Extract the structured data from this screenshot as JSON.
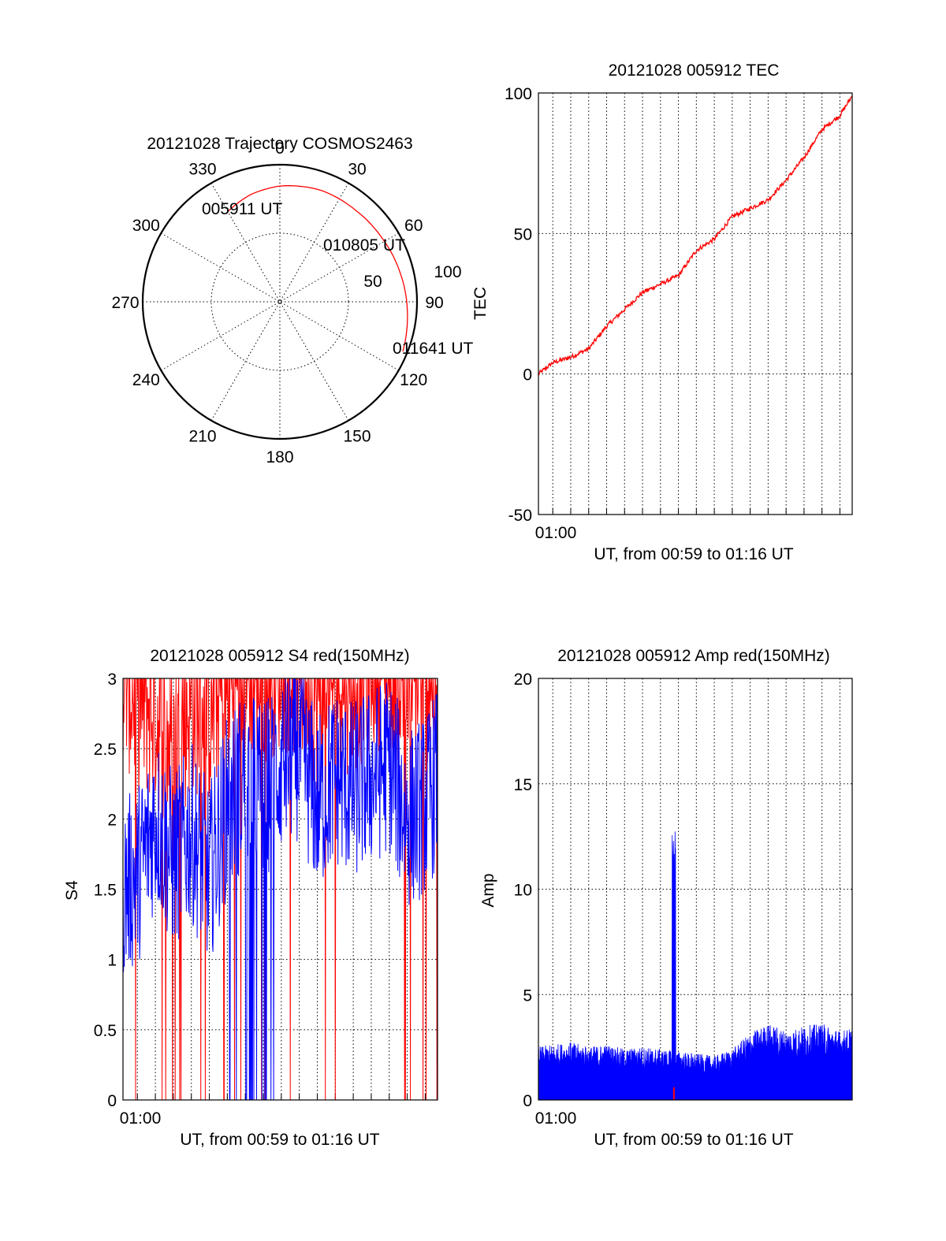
{
  "chart_data": [
    {
      "type": "polar",
      "title": "20121028 Trajectory COSMOS2463",
      "angle_labels": [
        "0",
        "30",
        "60",
        "90",
        "120",
        "150",
        "180",
        "210",
        "240",
        "270",
        "300",
        "330"
      ],
      "radial_labels": [
        "50",
        "100"
      ],
      "grid": true,
      "trajectory_color": "#ff0000",
      "trajectory": [
        {
          "azimuth": 329,
          "elevation": 22
        },
        {
          "azimuth": 345,
          "elevation": 17
        },
        {
          "azimuth": 0,
          "elevation": 14
        },
        {
          "azimuth": 20,
          "elevation": 12
        },
        {
          "azimuth": 40,
          "elevation": 12
        },
        {
          "azimuth": 58,
          "elevation": 11
        },
        {
          "azimuth": 75,
          "elevation": 9
        },
        {
          "azimuth": 95,
          "elevation": 6
        },
        {
          "azimuth": 112,
          "elevation": 3
        }
      ],
      "annotations": [
        {
          "text": "005911 UT",
          "azimuth": 329
        },
        {
          "text": "010805 UT",
          "azimuth": 50
        },
        {
          "text": "011641 UT",
          "azimuth": 112
        }
      ]
    },
    {
      "type": "line",
      "title": "20121028 005912 TEC",
      "xlabel": "UT, from 00:59 to 01:16 UT",
      "ylabel": "TEC",
      "x_ticks": [
        "01:00"
      ],
      "xlim": [
        "00:59:12",
        "01:16:41"
      ],
      "ylim": [
        -50,
        100
      ],
      "y_ticks": [
        "-50",
        "0",
        "50",
        "100"
      ],
      "grid": true,
      "series": [
        {
          "color": "#ff0000",
          "x": [
            "00:59:12",
            "01:00:00",
            "01:01:00",
            "01:02:00",
            "01:03:00",
            "01:04:00",
            "01:05:00",
            "01:06:00",
            "01:07:00",
            "01:08:00",
            "01:09:00",
            "01:10:00",
            "01:11:00",
            "01:12:00",
            "01:13:00",
            "01:14:00",
            "01:15:00",
            "01:16:00",
            "01:16:41"
          ],
          "values": [
            0,
            4,
            6,
            9,
            17,
            23,
            29,
            32,
            35,
            44,
            48,
            56,
            59,
            62,
            69,
            77,
            87,
            92,
            99
          ]
        }
      ]
    },
    {
      "type": "line",
      "title": "20121028 005912 S4 red(150MHz)",
      "xlabel": "UT, from 00:59 to 01:16 UT",
      "ylabel": "S4",
      "x_ticks": [
        "01:00"
      ],
      "xlim": [
        "00:59:12",
        "01:16:41"
      ],
      "ylim": [
        0,
        3
      ],
      "y_ticks": [
        "0",
        "0.5",
        "1",
        "1.5",
        "2",
        "2.5",
        "3"
      ],
      "grid": true,
      "series": [
        {
          "color": "#0000ff",
          "x": [
            "00:59:12",
            "01:00:00",
            "01:01:00",
            "01:02:00",
            "01:03:00",
            "01:04:00",
            "01:05:00",
            "01:06:00",
            "01:07:00",
            "01:08:00",
            "01:09:00",
            "01:10:00",
            "01:11:00",
            "01:12:00",
            "01:13:00",
            "01:14:00",
            "01:15:00",
            "01:16:00",
            "01:16:41"
          ],
          "values": [
            1.5,
            1.6,
            2.0,
            1.7,
            1.9,
            1.6,
            2.1,
            2.3,
            2.2,
            2.4,
            2.5,
            2.1,
            2.3,
            2.2,
            2.3,
            2.4,
            2.0,
            2.1,
            2.3
          ]
        },
        {
          "color": "#ff0000",
          "x": [
            "00:59:12",
            "01:00:00",
            "01:01:00",
            "01:02:00",
            "01:03:00",
            "01:04:00",
            "01:05:00",
            "01:06:00",
            "01:07:00",
            "01:08:00",
            "01:09:00",
            "01:10:00",
            "01:11:00",
            "01:12:00",
            "01:13:00",
            "01:14:00",
            "01:15:00",
            "01:16:00",
            "01:16:41"
          ],
          "values": [
            2.8,
            2.6,
            2.5,
            2.2,
            2.6,
            2.5,
            2.7,
            2.8,
            2.8,
            2.9,
            2.8,
            2.6,
            2.8,
            2.7,
            2.9,
            2.9,
            2.7,
            2.8,
            2.8
          ]
        }
      ]
    },
    {
      "type": "line",
      "title": "20121028 005912 Amp red(150MHz)",
      "xlabel": "UT, from 00:59 to 01:16 UT",
      "ylabel": "Amp",
      "x_ticks": [
        "01:00"
      ],
      "xlim": [
        "00:59:12",
        "01:16:41"
      ],
      "ylim": [
        0,
        20
      ],
      "y_ticks": [
        "0",
        "5",
        "10",
        "15",
        "20"
      ],
      "grid": true,
      "series": [
        {
          "color": "#0000ff",
          "x": [
            "00:59:12",
            "01:00:00",
            "01:01:00",
            "01:02:00",
            "01:03:00",
            "01:04:00",
            "01:05:00",
            "01:06:00",
            "01:06:45",
            "01:07:00",
            "01:08:00",
            "01:09:00",
            "01:10:00",
            "01:11:00",
            "01:12:00",
            "01:13:00",
            "01:14:00",
            "01:15:00",
            "01:16:00",
            "01:16:41"
          ],
          "values": [
            2.3,
            2.4,
            2.5,
            2.3,
            2.4,
            2.2,
            2.3,
            2.2,
            13.0,
            2.1,
            2.0,
            1.9,
            2.2,
            2.9,
            3.3,
            3.0,
            3.2,
            3.3,
            3.0,
            3.1
          ]
        },
        {
          "color": "#ff0000",
          "x": [
            "01:06:45"
          ],
          "values": [
            0.6
          ]
        }
      ]
    }
  ]
}
